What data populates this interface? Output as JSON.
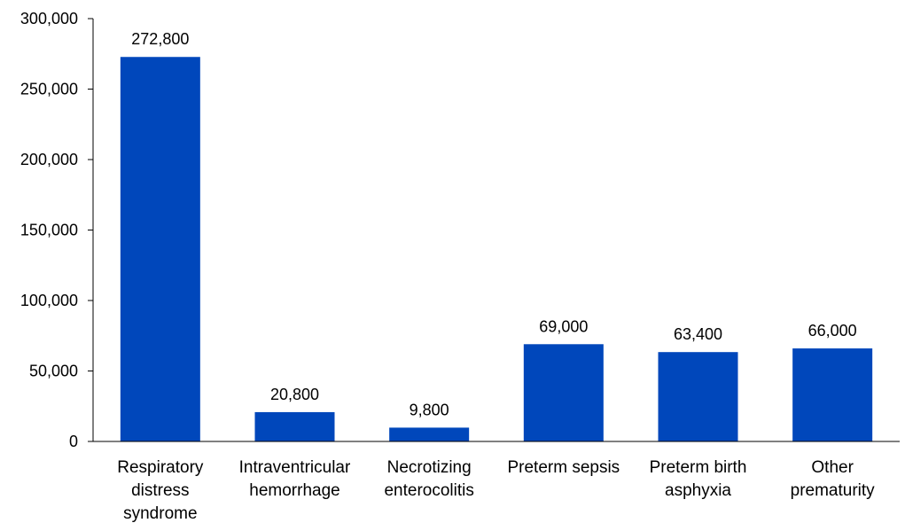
{
  "chart_data": {
    "type": "bar",
    "title": "",
    "xlabel": "",
    "ylabel": "",
    "categories": [
      "Respiratory distress syndrome",
      "Intraventricular hemorrhage",
      "Necrotizing enterocolitis",
      "Preterm sepsis",
      "Preterm birth asphyxia",
      "Other prematurity"
    ],
    "category_lines": [
      [
        "Respiratory",
        "distress",
        "syndrome"
      ],
      [
        "Intraventricular",
        "hemorrhage"
      ],
      [
        "Necrotizing",
        "enterocolitis"
      ],
      [
        "Preterm sepsis"
      ],
      [
        "Preterm birth",
        "asphyxia"
      ],
      [
        "Other",
        "prematurity"
      ]
    ],
    "values": [
      272800,
      20800,
      9800,
      69000,
      63400,
      66000
    ],
    "value_labels": [
      "272,800",
      "20,800",
      "9,800",
      "69,000",
      "63,400",
      "66,000"
    ],
    "ylim": [
      0,
      300000
    ],
    "yticks": [
      0,
      50000,
      100000,
      150000,
      200000,
      250000,
      300000
    ],
    "ytick_labels": [
      "0",
      "50,000",
      "100,000",
      "150,000",
      "200,000",
      "250,000",
      "300,000"
    ],
    "grid": false,
    "legend": "none",
    "bar_color": "#0047BB",
    "axis_color": "#000000"
  }
}
